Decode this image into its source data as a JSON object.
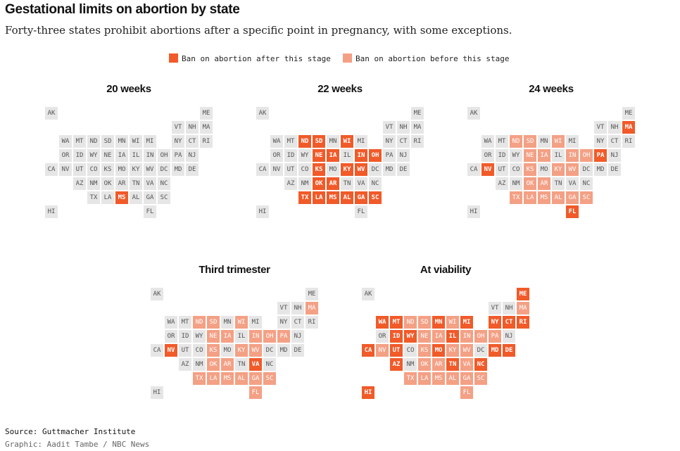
{
  "title": "Gestational limits on abortion by state",
  "subtitle": "Forty-three states prohibit abortions after a specific point in pregnancy, with some exceptions.",
  "legend": [
    {
      "key": "after",
      "label": "Ban on abortion after this stage",
      "color": "#f15a29"
    },
    {
      "key": "before",
      "label": "Ban on abortion before this stage",
      "color": "#f4a085"
    }
  ],
  "colors": {
    "none": "#e6e6e6",
    "none_text": "#555555",
    "after": "#f15a29",
    "before": "#f4a085",
    "filled_text": "#ffffff"
  },
  "source": "Source: Guttmacher Institute",
  "credit": "Graphic: Aadit Tambe / NBC News",
  "chart_data": [
    {
      "type": "tile-grid-map",
      "title": "20 weeks",
      "after": [
        "MS"
      ],
      "before": []
    },
    {
      "type": "tile-grid-map",
      "title": "22 weeks",
      "after": [
        "ND",
        "SD",
        "WI",
        "NE",
        "IA",
        "IN",
        "OH",
        "KS",
        "KY",
        "WV",
        "OK",
        "AR",
        "TX",
        "LA",
        "MS",
        "AL",
        "GA",
        "SC"
      ],
      "before": []
    },
    {
      "type": "tile-grid-map",
      "title": "24 weeks",
      "after": [
        "MA",
        "NV",
        "PA",
        "FL"
      ],
      "before": [
        "ND",
        "SD",
        "WI",
        "NE",
        "IA",
        "IN",
        "OH",
        "KS",
        "KY",
        "WV",
        "OK",
        "AR",
        "TX",
        "LA",
        "MS",
        "AL",
        "GA",
        "SC"
      ]
    },
    {
      "type": "tile-grid-map",
      "title": "Third trimester",
      "after": [
        "NV",
        "VA"
      ],
      "before": [
        "MA",
        "PA",
        "FL",
        "ND",
        "SD",
        "WI",
        "NE",
        "IA",
        "IN",
        "OH",
        "KS",
        "KY",
        "WV",
        "OK",
        "AR",
        "TX",
        "LA",
        "MS",
        "AL",
        "GA",
        "SC"
      ]
    },
    {
      "type": "tile-grid-map",
      "title": "At viability",
      "after": [
        "ME",
        "NY",
        "CT",
        "RI",
        "WA",
        "MT",
        "MN",
        "MI",
        "ID",
        "WY",
        "IL",
        "CA",
        "UT",
        "MO",
        "MD",
        "DE",
        "AZ",
        "TN",
        "NC",
        "HI"
      ],
      "before": [
        "MA",
        "NV",
        "VA",
        "PA",
        "FL",
        "ND",
        "SD",
        "WI",
        "NE",
        "IA",
        "IN",
        "OH",
        "KS",
        "KY",
        "WV",
        "OK",
        "AR",
        "TX",
        "LA",
        "MS",
        "AL",
        "GA",
        "SC"
      ]
    }
  ],
  "grid": [
    [
      "AK",
      0,
      0
    ],
    [
      "ME",
      11,
      0
    ],
    [
      "VT",
      9,
      1
    ],
    [
      "NH",
      10,
      1
    ],
    [
      "MA",
      11,
      1
    ],
    [
      "WA",
      1,
      2
    ],
    [
      "MT",
      2,
      2
    ],
    [
      "ND",
      3,
      2
    ],
    [
      "SD",
      4,
      2
    ],
    [
      "MN",
      5,
      2
    ],
    [
      "WI",
      6,
      2
    ],
    [
      "MI",
      7,
      2
    ],
    [
      "NY",
      9,
      2
    ],
    [
      "CT",
      10,
      2
    ],
    [
      "RI",
      11,
      2
    ],
    [
      "OR",
      1,
      3
    ],
    [
      "ID",
      2,
      3
    ],
    [
      "WY",
      3,
      3
    ],
    [
      "NE",
      4,
      3
    ],
    [
      "IA",
      5,
      3
    ],
    [
      "IL",
      6,
      3
    ],
    [
      "IN",
      7,
      3
    ],
    [
      "OH",
      8,
      3
    ],
    [
      "PA",
      9,
      3
    ],
    [
      "NJ",
      10,
      3
    ],
    [
      "CA",
      0,
      4
    ],
    [
      "NV",
      1,
      4
    ],
    [
      "UT",
      2,
      4
    ],
    [
      "CO",
      3,
      4
    ],
    [
      "KS",
      4,
      4
    ],
    [
      "MO",
      5,
      4
    ],
    [
      "KY",
      6,
      4
    ],
    [
      "WV",
      7,
      4
    ],
    [
      "DC",
      8,
      4
    ],
    [
      "MD",
      9,
      4
    ],
    [
      "DE",
      10,
      4
    ],
    [
      "AZ",
      2,
      5
    ],
    [
      "NM",
      3,
      5
    ],
    [
      "OK",
      4,
      5
    ],
    [
      "AR",
      5,
      5
    ],
    [
      "TN",
      6,
      5
    ],
    [
      "VA",
      7,
      5
    ],
    [
      "NC",
      8,
      5
    ],
    [
      "TX",
      3,
      6
    ],
    [
      "LA",
      4,
      6
    ],
    [
      "MS",
      5,
      6
    ],
    [
      "AL",
      6,
      6
    ],
    [
      "GA",
      7,
      6
    ],
    [
      "SC",
      8,
      6
    ],
    [
      "HI",
      0,
      7
    ],
    [
      "FL",
      7,
      7
    ]
  ]
}
